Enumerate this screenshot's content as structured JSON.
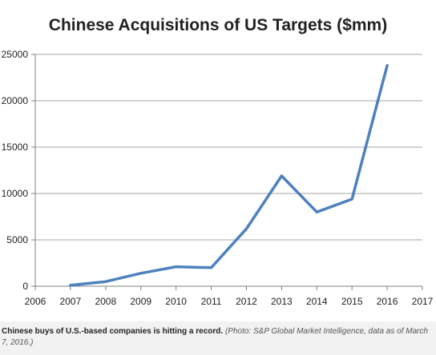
{
  "chart_data": {
    "type": "line",
    "title": "Chinese Acquisitions  of US Targets ($mm)",
    "xlabel": "",
    "ylabel": "",
    "x_ticks": [
      "2006",
      "2007",
      "2008",
      "2009",
      "2010",
      "2011",
      "2012",
      "2013",
      "2014",
      "2015",
      "2016",
      "2017"
    ],
    "y_ticks": [
      "0",
      "5000",
      "10000",
      "15000",
      "20000",
      "25000"
    ],
    "xlim": [
      2006,
      2017
    ],
    "ylim": [
      0,
      25000
    ],
    "grid": "horizontal",
    "series": [
      {
        "x": [
          2007,
          2008,
          2009,
          2010,
          2011,
          2012,
          2013,
          2014,
          2015,
          2016
        ],
        "values": [
          100,
          500,
          1400,
          2100,
          2000,
          6200,
          11900,
          8000,
          9400,
          23800
        ],
        "color": "#4f81bd"
      }
    ]
  },
  "caption": {
    "main": "Chinese buys of U.S.-based companies is hitting a record.",
    "credit": "(Photo: S&P Global Market Intelligence, data as of March 7, 2016.)"
  }
}
